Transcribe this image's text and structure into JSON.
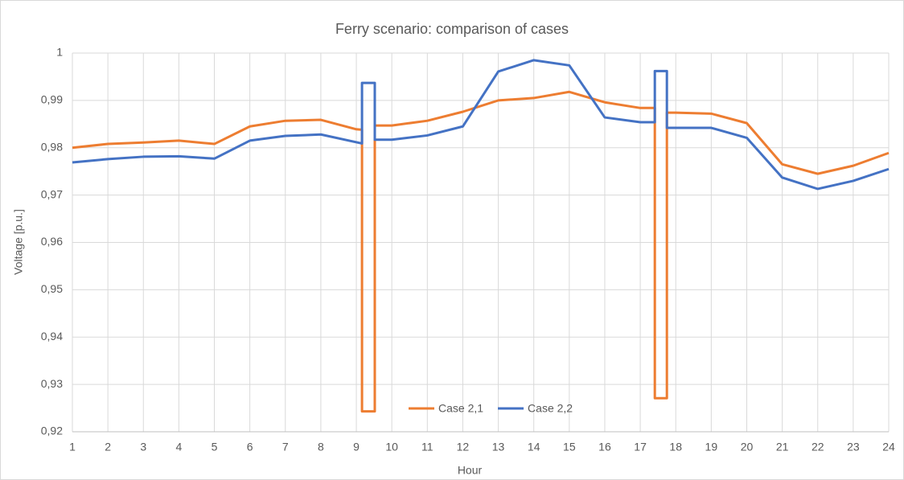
{
  "chart_data": {
    "type": "line",
    "title": "Ferry scenario: comparison of cases",
    "x_label": "Hour",
    "y_label": "Voltage [p.u.]",
    "xlim": [
      1,
      24
    ],
    "xticks": [
      1,
      2,
      3,
      4,
      5,
      6,
      7,
      8,
      9,
      10,
      11,
      12,
      13,
      14,
      15,
      16,
      17,
      18,
      19,
      20,
      21,
      22,
      23,
      24
    ],
    "ylim": [
      0.92,
      1
    ],
    "yticks": [
      {
        "value": 0.92,
        "label": "0,92"
      },
      {
        "value": 0.93,
        "label": "0,93"
      },
      {
        "value": 0.94,
        "label": "0,94"
      },
      {
        "value": 0.95,
        "label": "0,95"
      },
      {
        "value": 0.96,
        "label": "0,96"
      },
      {
        "value": 0.97,
        "label": "0,97"
      },
      {
        "value": 0.98,
        "label": "0,98"
      },
      {
        "value": 0.99,
        "label": "0,99"
      },
      {
        "value": 1,
        "label": "1"
      }
    ],
    "grid": true,
    "legend": "bottom",
    "series": [
      {
        "name": "Case 2,1",
        "color": "#ed7d31",
        "x": [
          1,
          2,
          3,
          4,
          5,
          6,
          7,
          8,
          9,
          9.16,
          9.16,
          9.52,
          9.52,
          10,
          11,
          12,
          13,
          14,
          15,
          16,
          17,
          17.41,
          17.41,
          17.75,
          17.75,
          18,
          19,
          20,
          21,
          22,
          23,
          24
        ],
        "values": [
          0.98,
          0.9808,
          0.9811,
          0.9815,
          0.9808,
          0.9845,
          0.9857,
          0.9859,
          0.9839,
          0.9838,
          0.9243,
          0.9243,
          0.9847,
          0.9847,
          0.9857,
          0.9876,
          0.99,
          0.9905,
          0.9918,
          0.9896,
          0.9884,
          0.9884,
          0.9271,
          0.9271,
          0.9874,
          0.9874,
          0.9872,
          0.9852,
          0.9765,
          0.9745,
          0.9762,
          0.9789
        ]
      },
      {
        "name": "Case 2,2",
        "color": "#4472c4",
        "x": [
          1,
          2,
          3,
          4,
          5,
          6,
          7,
          8,
          9.16,
          9.16,
          9.52,
          9.52,
          10,
          11,
          12,
          13,
          14,
          15,
          16,
          17,
          17.41,
          17.41,
          17.75,
          17.75,
          18,
          19,
          20,
          21,
          22,
          23,
          24
        ],
        "values": [
          0.9769,
          0.9776,
          0.9781,
          0.9782,
          0.9777,
          0.9815,
          0.9825,
          0.9828,
          0.9809,
          0.9937,
          0.9937,
          0.9817,
          0.9817,
          0.9826,
          0.9845,
          0.9961,
          0.9985,
          0.9974,
          0.9864,
          0.9854,
          0.9854,
          0.9962,
          0.9962,
          0.9842,
          0.9842,
          0.9842,
          0.9821,
          0.9737,
          0.9713,
          0.973,
          0.9755
        ]
      }
    ]
  }
}
